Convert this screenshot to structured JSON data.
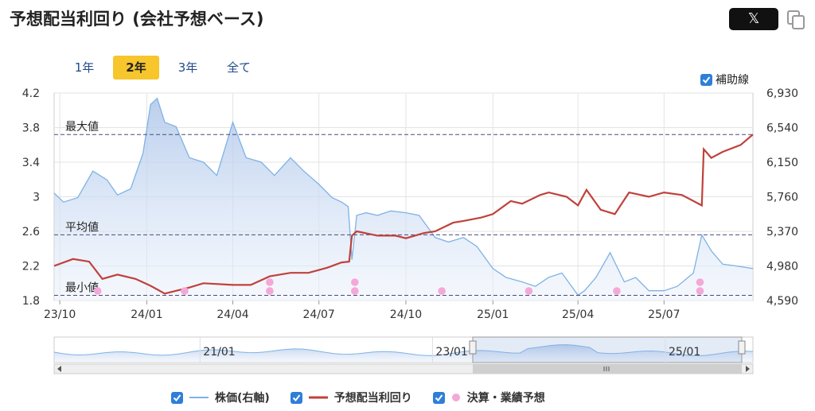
{
  "title": "予想配当利回り (会社予想ベース)",
  "share": {
    "x_label": "𝕏"
  },
  "tabs": [
    {
      "label": "1年",
      "active": false
    },
    {
      "label": "2年",
      "active": true
    },
    {
      "label": "3年",
      "active": false
    },
    {
      "label": "全て",
      "active": false
    }
  ],
  "aux_lines_label": "補助線",
  "legend": {
    "price": "株価(右軸)",
    "yield": "予想配当利回り",
    "events": "決算・業績予想"
  },
  "colors": {
    "price": "#7fb2e5",
    "yield": "#c0413b",
    "event": "#f4a8d8",
    "accent": "#f7c52c",
    "checkbox": "#2f7fd8"
  },
  "chart_data": {
    "type": "line",
    "x_ticks": [
      "23/10",
      "24/01",
      "24/04",
      "24/07",
      "24/10",
      "25/01",
      "25/04",
      "25/07"
    ],
    "x_tick_dates": [
      "2023-10-01",
      "2024-01-01",
      "2024-04-01",
      "2024-07-01",
      "2024-10-01",
      "2025-01-01",
      "2025-04-01",
      "2025-07-01"
    ],
    "x_range": [
      "2023-09-25",
      "2025-10-03"
    ],
    "left_axis": {
      "ticks": [
        "1.8",
        "2.2",
        "2.6",
        "3",
        "3.4",
        "3.8",
        "4.2"
      ],
      "range": [
        1.8,
        4.2
      ]
    },
    "right_axis": {
      "ticks": [
        "4,590",
        "4,980",
        "5,370",
        "5,760",
        "6,150",
        "6,540",
        "6,930"
      ],
      "range": [
        4590,
        6930
      ]
    },
    "reference_lines": [
      {
        "label": "最大値",
        "value": 3.72
      },
      {
        "label": "平均値",
        "value": 2.56
      },
      {
        "label": "最小値",
        "value": 1.86
      }
    ],
    "series": [
      {
        "name": "株価(右軸)",
        "axis": "right",
        "x": [
          "2023-09-25",
          "2023-10-05",
          "2023-10-20",
          "2023-11-05",
          "2023-11-20",
          "2023-12-01",
          "2023-12-15",
          "2023-12-28",
          "2024-01-05",
          "2024-01-12",
          "2024-01-20",
          "2024-02-01",
          "2024-02-15",
          "2024-03-01",
          "2024-03-15",
          "2024-04-01",
          "2024-04-15",
          "2024-05-01",
          "2024-05-15",
          "2024-06-01",
          "2024-06-15",
          "2024-07-01",
          "2024-07-15",
          "2024-07-25",
          "2024-08-01",
          "2024-08-05",
          "2024-08-10",
          "2024-08-20",
          "2024-09-01",
          "2024-09-15",
          "2024-10-01",
          "2024-10-15",
          "2024-11-01",
          "2024-11-15",
          "2024-12-01",
          "2024-12-15",
          "2025-01-01",
          "2025-01-15",
          "2025-02-01",
          "2025-02-15",
          "2025-03-01",
          "2025-03-15",
          "2025-04-01",
          "2025-04-08",
          "2025-04-20",
          "2025-05-05",
          "2025-05-20",
          "2025-06-01",
          "2025-06-15",
          "2025-07-01",
          "2025-07-15",
          "2025-08-01",
          "2025-08-10",
          "2025-08-20",
          "2025-09-01",
          "2025-09-15",
          "2025-10-03"
        ],
        "y": [
          5800,
          5700,
          5750,
          6050,
          5950,
          5780,
          5850,
          6250,
          6800,
          6870,
          6600,
          6550,
          6200,
          6150,
          6000,
          6600,
          6200,
          6150,
          6000,
          6200,
          6050,
          5900,
          5750,
          5700,
          5650,
          5050,
          5550,
          5580,
          5550,
          5600,
          5580,
          5550,
          5300,
          5250,
          5300,
          5200,
          4950,
          4850,
          4800,
          4750,
          4850,
          4900,
          4650,
          4700,
          4850,
          5130,
          4800,
          4850,
          4700,
          4700,
          4750,
          4900,
          5330,
          5150,
          5000,
          4980,
          4950
        ]
      },
      {
        "name": "予想配当利回り",
        "axis": "left",
        "x": [
          "2023-09-25",
          "2023-10-15",
          "2023-11-01",
          "2023-11-15",
          "2023-12-01",
          "2023-12-20",
          "2024-01-05",
          "2024-01-20",
          "2024-02-15",
          "2024-03-01",
          "2024-04-01",
          "2024-04-20",
          "2024-05-10",
          "2024-06-01",
          "2024-06-20",
          "2024-07-10",
          "2024-07-25",
          "2024-08-02",
          "2024-08-05",
          "2024-08-10",
          "2024-09-01",
          "2024-09-20",
          "2024-10-01",
          "2024-10-20",
          "2024-11-01",
          "2024-11-20",
          "2024-12-01",
          "2024-12-20",
          "2025-01-01",
          "2025-01-20",
          "2025-02-01",
          "2025-02-20",
          "2025-03-01",
          "2025-03-20",
          "2025-04-01",
          "2025-04-10",
          "2025-04-25",
          "2025-05-10",
          "2025-05-25",
          "2025-06-15",
          "2025-07-01",
          "2025-07-20",
          "2025-08-10",
          "2025-08-12",
          "2025-08-20",
          "2025-09-01",
          "2025-09-20",
          "2025-10-03"
        ],
        "y": [
          2.2,
          2.28,
          2.25,
          2.05,
          2.1,
          2.05,
          1.97,
          1.88,
          1.95,
          2.0,
          1.98,
          1.98,
          2.08,
          2.12,
          2.12,
          2.18,
          2.24,
          2.25,
          2.55,
          2.6,
          2.55,
          2.55,
          2.52,
          2.58,
          2.6,
          2.7,
          2.72,
          2.76,
          2.8,
          2.95,
          2.92,
          3.02,
          3.05,
          3.0,
          2.9,
          3.08,
          2.85,
          2.8,
          3.05,
          3.0,
          3.05,
          3.02,
          2.9,
          3.55,
          3.45,
          3.52,
          3.6,
          3.72
        ]
      }
    ],
    "events": {
      "name": "決算・業績予想",
      "x": [
        "2023-11-10",
        "2024-02-10",
        "2024-05-10",
        "2024-05-10",
        "2024-08-08",
        "2024-08-08",
        "2024-11-08",
        "2025-02-08",
        "2025-05-12",
        "2025-08-08",
        "2025-08-08"
      ],
      "row": [
        1,
        1,
        1,
        2,
        1,
        2,
        1,
        1,
        1,
        1,
        2
      ]
    },
    "navigator": {
      "x_ticks": [
        "21/01",
        "23/01",
        "25/01"
      ]
    }
  }
}
